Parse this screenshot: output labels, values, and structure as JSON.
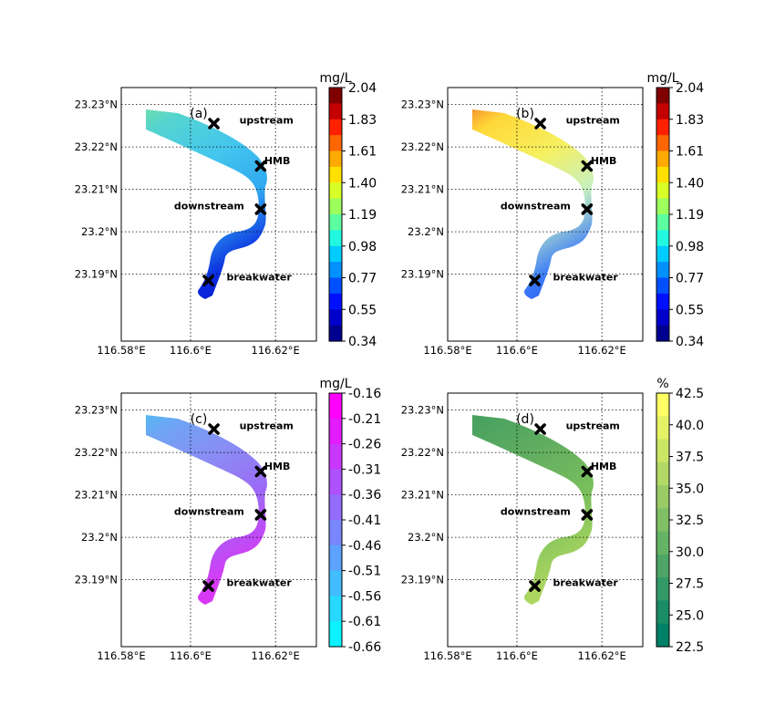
{
  "figure": {
    "lat_ticks": [
      "23.23°N",
      "23.22°N",
      "23.21°N",
      "23.2°N",
      "23.19°N"
    ],
    "lon_ticks": [
      "116.58°E",
      "116.6°E",
      "116.62°E"
    ],
    "sites": [
      {
        "name": "upstream",
        "lon": 116.6055,
        "lat": 23.2255
      },
      {
        "name": "HMB",
        "lon": 116.6165,
        "lat": 23.2155
      },
      {
        "name": "downstream",
        "lon": 116.6165,
        "lat": 23.2053
      },
      {
        "name": "breakwater",
        "lon": 116.6042,
        "lat": 23.1885
      }
    ],
    "panels": [
      {
        "id": "a",
        "label": "(a)",
        "unit": "mg/L",
        "cmap": "jet",
        "colorbar_ticks": [
          "2.04",
          "1.83",
          "1.61",
          "1.40",
          "1.19",
          "0.98",
          "0.77",
          "0.55",
          "0.34"
        ],
        "field_colors": [
          "#8ee880",
          "#54d4d0",
          "#44c6ee",
          "#30a8f0",
          "#0a2ae0",
          "#0814c0"
        ]
      },
      {
        "id": "b",
        "label": "(b)",
        "unit": "mg/L",
        "cmap": "jet",
        "colorbar_ticks": [
          "2.04",
          "1.83",
          "1.61",
          "1.40",
          "1.19",
          "0.98",
          "0.77",
          "0.55",
          "0.34"
        ],
        "field_colors": [
          "#ea3a1c",
          "#ffd838",
          "#f6f060",
          "#c6f0c0",
          "#3c7cf8",
          "#1a3ef0"
        ]
      },
      {
        "id": "c",
        "label": "(c)",
        "unit": "mg/L",
        "cmap": "cool",
        "colorbar_ticks": [
          "-0.16",
          "-0.21",
          "-0.26",
          "-0.31",
          "-0.36",
          "-0.41",
          "-0.46",
          "-0.51",
          "-0.56",
          "-0.61",
          "-0.66"
        ],
        "field_colors": [
          "#30d8f4",
          "#6ea4f4",
          "#8c8af4",
          "#9e66f6",
          "#d43cf6",
          "#ea22f4"
        ]
      },
      {
        "id": "d",
        "label": "(d)",
        "unit": "%",
        "cmap": "summer",
        "colorbar_ticks": [
          "42.5",
          "40.0",
          "37.5",
          "35.0",
          "32.5",
          "30.0",
          "27.5",
          "25.0",
          "22.5"
        ],
        "field_colors": [
          "#3e9a5e",
          "#4ea460",
          "#66b060",
          "#7ac05c",
          "#a8d460",
          "#c2e066"
        ]
      }
    ],
    "colormaps": {
      "jet": [
        "#800000",
        "#c40000",
        "#ff2000",
        "#ff6600",
        "#ffaa00",
        "#ffe000",
        "#d8ff28",
        "#9cff5c",
        "#5cffa0",
        "#22f8e0",
        "#00ccff",
        "#0090ff",
        "#0050ff",
        "#0010ff",
        "#0000cc",
        "#000090"
      ],
      "cool": [
        "#ff00ff",
        "#e41bff",
        "#c936ff",
        "#ae51ff",
        "#936cff",
        "#7887ff",
        "#5da2ff",
        "#42bdff",
        "#27d8ff",
        "#0cf3ff"
      ],
      "summer": [
        "#ffff66",
        "#e6f266",
        "#cce666",
        "#b3d966",
        "#99cc66",
        "#80bf66",
        "#66b366",
        "#4da666",
        "#339966",
        "#1a8c66",
        "#008066"
      ]
    }
  }
}
